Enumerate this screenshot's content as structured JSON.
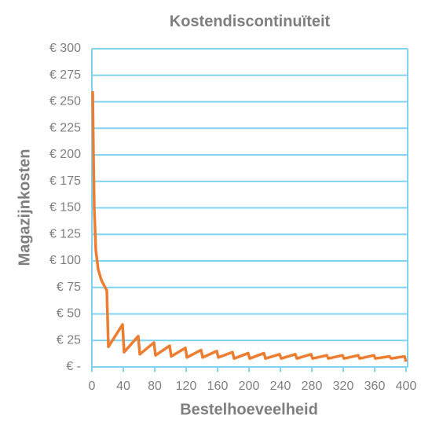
{
  "chart_data": {
    "type": "line",
    "title": "Kostendiscontinuïteit",
    "x_label": "Bestelhoeveelheid",
    "y_label": "Magazijnkosten",
    "x": [
      1,
      2,
      3,
      5,
      8,
      12,
      19,
      21,
      39,
      41,
      59,
      61,
      79,
      81,
      99,
      101,
      119,
      121,
      139,
      141,
      159,
      161,
      179,
      181,
      199,
      201,
      219,
      221,
      239,
      241,
      259,
      261,
      279,
      281,
      299,
      301,
      319,
      321,
      339,
      341,
      359,
      361,
      379,
      381,
      398,
      400
    ],
    "series": [
      {
        "name": "Magazijnkosten",
        "color": "#ed7d31",
        "values": [
          260,
          200,
          150,
          110,
          92,
          82,
          72,
          19,
          40,
          14,
          29,
          12,
          23,
          11,
          20,
          10,
          18,
          9,
          16,
          9,
          15,
          9,
          14,
          8,
          13,
          8,
          13,
          8,
          12,
          8,
          12,
          8,
          12,
          8,
          11,
          8,
          11,
          8,
          11,
          8,
          11,
          8,
          10,
          8,
          10,
          5
        ]
      }
    ],
    "xlim": [
      0,
      400
    ],
    "xticks": [
      0,
      40,
      80,
      120,
      160,
      200,
      240,
      280,
      320,
      360,
      400
    ],
    "ylim": [
      0,
      300
    ],
    "yticks": [
      {
        "value": 0,
        "label": "€ -"
      },
      {
        "value": 25,
        "label": "€ 25"
      },
      {
        "value": 50,
        "label": "€ 50"
      },
      {
        "value": 75,
        "label": "€ 75"
      },
      {
        "value": 100,
        "label": "€ 100"
      },
      {
        "value": 125,
        "label": "€ 125"
      },
      {
        "value": 150,
        "label": "€ 150"
      },
      {
        "value": 175,
        "label": "€ 175"
      },
      {
        "value": 200,
        "label": "€ 200"
      },
      {
        "value": 225,
        "label": "€ 225"
      },
      {
        "value": 250,
        "label": "€ 250"
      },
      {
        "value": 275,
        "label": "€ 275"
      },
      {
        "value": 300,
        "label": "€ 300"
      }
    ],
    "grid": true
  }
}
